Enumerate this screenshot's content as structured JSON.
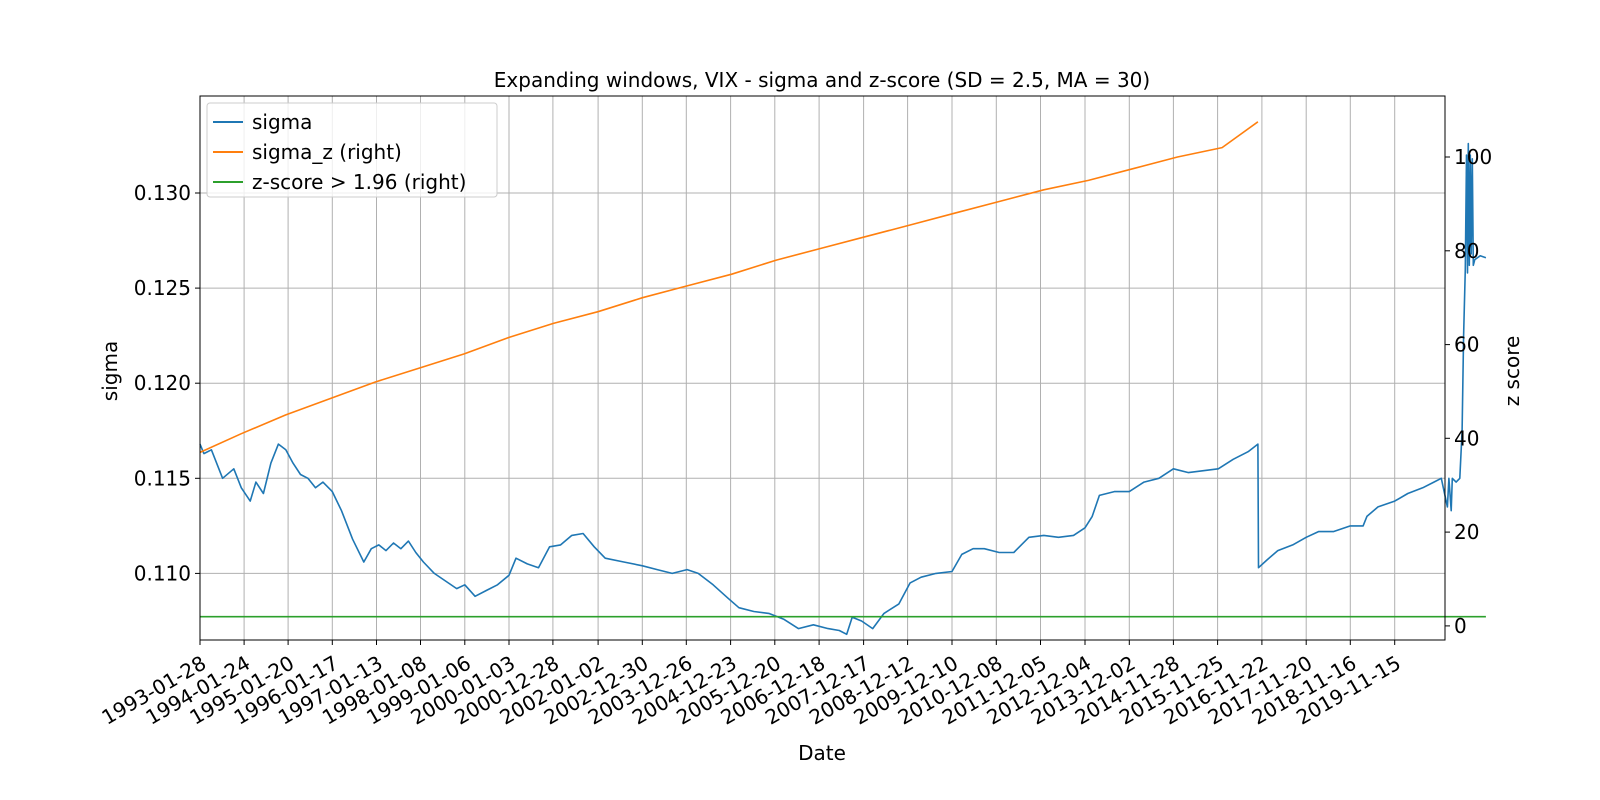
{
  "chart_data": {
    "type": "line",
    "title": "Expanding windows, VIX - sigma and z-score (SD = 2.5, MA = 30)",
    "xlabel": "Date",
    "ylabel": "sigma",
    "y2label": "z score",
    "xlim": [
      "1993-01-28",
      "2020-12-31"
    ],
    "ylim": [
      0.1065,
      0.1351
    ],
    "y2lim": [
      -3,
      113
    ],
    "yticks": [
      "0.110",
      "0.115",
      "0.120",
      "0.125",
      "0.130"
    ],
    "y2ticks": [
      "0",
      "20",
      "40",
      "60",
      "80",
      "100"
    ],
    "xticks": [
      "1993-01-28",
      "1994-01-24",
      "1995-01-20",
      "1996-01-17",
      "1997-01-13",
      "1998-01-08",
      "1999-01-06",
      "2000-01-03",
      "2000-12-28",
      "2002-01-02",
      "2002-12-30",
      "2003-12-26",
      "2004-12-23",
      "2005-12-20",
      "2006-12-18",
      "2007-12-17",
      "2008-12-12",
      "2009-12-10",
      "2010-12-08",
      "2011-12-05",
      "2012-12-04",
      "2013-12-02",
      "2014-11-28",
      "2015-11-25",
      "2016-11-22",
      "2017-11-20",
      "2018-11-16",
      "2019-11-15"
    ],
    "grid": true,
    "legend_position": "top-left",
    "colors": {
      "sigma": "#1f77b4",
      "sigma_z": "#ff7f0e",
      "zscore": "#2ca02c"
    },
    "series": [
      {
        "name": "sigma",
        "axis": "left",
        "points": [
          [
            "1993-01-28",
            0.1168
          ],
          [
            "1993-03-01",
            0.1163
          ],
          [
            "1993-05-01",
            0.1165
          ],
          [
            "1993-08-01",
            0.115
          ],
          [
            "1993-11-01",
            0.1155
          ],
          [
            "1994-01-01",
            0.1145
          ],
          [
            "1994-03-15",
            0.1138
          ],
          [
            "1994-05-01",
            0.1148
          ],
          [
            "1994-07-01",
            0.1142
          ],
          [
            "1994-09-01",
            0.1158
          ],
          [
            "1994-11-01",
            0.1168
          ],
          [
            "1995-01-01",
            0.1165
          ],
          [
            "1995-03-01",
            0.1158
          ],
          [
            "1995-05-01",
            0.1152
          ],
          [
            "1995-07-01",
            0.115
          ],
          [
            "1995-09-01",
            0.1145
          ],
          [
            "1995-11-01",
            0.1148
          ],
          [
            "1996-01-17",
            0.1143
          ],
          [
            "1996-04-01",
            0.1133
          ],
          [
            "1996-07-01",
            0.1118
          ],
          [
            "1996-10-01",
            0.1106
          ],
          [
            "1996-12-01",
            0.1113
          ],
          [
            "1997-02-01",
            0.1115
          ],
          [
            "1997-04-01",
            0.1112
          ],
          [
            "1997-06-01",
            0.1116
          ],
          [
            "1997-08-01",
            0.1113
          ],
          [
            "1997-10-01",
            0.1117
          ],
          [
            "1997-12-01",
            0.1111
          ],
          [
            "1998-02-01",
            0.1106
          ],
          [
            "1998-05-01",
            0.11
          ],
          [
            "1998-08-01",
            0.1096
          ],
          [
            "1998-11-01",
            0.1092
          ],
          [
            "1999-01-06",
            0.1094
          ],
          [
            "1999-04-01",
            0.1088
          ],
          [
            "1999-07-01",
            0.1091
          ],
          [
            "1999-10-01",
            0.1094
          ],
          [
            "2000-01-03",
            0.1099
          ],
          [
            "2000-03-01",
            0.1108
          ],
          [
            "2000-06-01",
            0.1105
          ],
          [
            "2000-09-01",
            0.1103
          ],
          [
            "2000-12-01",
            0.1114
          ],
          [
            "2001-03-01",
            0.1115
          ],
          [
            "2001-06-01",
            0.112
          ],
          [
            "2001-09-01",
            0.1121
          ],
          [
            "2001-12-01",
            0.1114
          ],
          [
            "2002-03-01",
            0.1108
          ],
          [
            "2002-08-01",
            0.1106
          ],
          [
            "2003-01-01",
            0.1104
          ],
          [
            "2003-05-01",
            0.1102
          ],
          [
            "2003-09-01",
            0.11
          ],
          [
            "2004-01-01",
            0.1102
          ],
          [
            "2004-04-01",
            0.11
          ],
          [
            "2004-08-01",
            0.1094
          ],
          [
            "2004-12-01",
            0.1087
          ],
          [
            "2005-03-01",
            0.1082
          ],
          [
            "2005-07-01",
            0.108
          ],
          [
            "2005-11-01",
            0.1079
          ],
          [
            "2006-03-01",
            0.1076
          ],
          [
            "2006-07-01",
            0.1071
          ],
          [
            "2006-11-01",
            0.1073
          ],
          [
            "2007-03-01",
            0.1071
          ],
          [
            "2007-06-01",
            0.107
          ],
          [
            "2007-08-01",
            0.1068
          ],
          [
            "2007-09-15",
            0.1077
          ],
          [
            "2007-12-01",
            0.1075
          ],
          [
            "2008-03-01",
            0.1071
          ],
          [
            "2008-06-01",
            0.1079
          ],
          [
            "2008-10-01",
            0.1084
          ],
          [
            "2009-01-01",
            0.1095
          ],
          [
            "2009-04-01",
            0.1098
          ],
          [
            "2009-08-01",
            0.11
          ],
          [
            "2009-12-10",
            0.1101
          ],
          [
            "2010-03-01",
            0.111
          ],
          [
            "2010-06-01",
            0.1113
          ],
          [
            "2010-09-01",
            0.1113
          ],
          [
            "2011-01-01",
            0.1111
          ],
          [
            "2011-05-01",
            0.1111
          ],
          [
            "2011-09-01",
            0.1119
          ],
          [
            "2012-01-01",
            0.112
          ],
          [
            "2012-05-01",
            0.1119
          ],
          [
            "2012-09-01",
            0.112
          ],
          [
            "2012-12-04",
            0.1124
          ],
          [
            "2013-02-01",
            0.113
          ],
          [
            "2013-04-01",
            0.1141
          ],
          [
            "2013-08-01",
            0.1143
          ],
          [
            "2013-12-02",
            0.1143
          ],
          [
            "2014-04-01",
            0.1148
          ],
          [
            "2014-08-01",
            0.115
          ],
          [
            "2014-11-28",
            0.1155
          ],
          [
            "2015-04-01",
            0.1153
          ],
          [
            "2015-08-01",
            0.1154
          ],
          [
            "2015-12-01",
            0.1155
          ],
          [
            "2016-04-01",
            0.116
          ],
          [
            "2016-08-01",
            0.1164
          ],
          [
            "2016-10-20",
            0.1168
          ],
          [
            "2016-10-25",
            0.1103
          ],
          [
            "2017-01-01",
            0.1107
          ],
          [
            "2017-04-01",
            0.1112
          ],
          [
            "2017-08-01",
            0.1115
          ],
          [
            "2017-11-20",
            0.1119
          ],
          [
            "2018-03-01",
            0.1122
          ],
          [
            "2018-07-01",
            0.1122
          ],
          [
            "2018-11-16",
            0.1125
          ],
          [
            "2019-03-01",
            0.1125
          ],
          [
            "2019-04-01",
            0.113
          ],
          [
            "2019-07-01",
            0.1135
          ],
          [
            "2019-11-15",
            0.1138
          ],
          [
            "2020-03-01",
            0.1142
          ],
          [
            "2020-07-01",
            0.1145
          ],
          [
            "2020-10-01",
            0.1148
          ],
          [
            "2020-12-01",
            0.115
          ],
          [
            "2021-01-20",
            0.1135
          ],
          [
            "2021-02-01",
            0.115
          ],
          [
            "2021-02-20",
            0.1133
          ],
          [
            "2021-03-01",
            0.115
          ],
          [
            "2021-04-01",
            0.1148
          ],
          [
            "2021-05-01",
            0.115
          ],
          [
            "2021-05-20",
            0.1175
          ],
          [
            "2021-06-01",
            0.1225
          ],
          [
            "2021-06-15",
            0.126
          ],
          [
            "2021-06-25",
            0.132
          ],
          [
            "2021-07-03",
            0.1258
          ],
          [
            "2021-07-10",
            0.1326
          ],
          [
            "2021-07-18",
            0.1262
          ],
          [
            "2021-07-26",
            0.132
          ],
          [
            "2021-08-03",
            0.1268
          ],
          [
            "2021-08-12",
            0.1318
          ],
          [
            "2021-08-20",
            0.1262
          ],
          [
            "2021-09-01",
            0.1265
          ],
          [
            "2021-10-15",
            0.1267
          ],
          [
            "2021-12-01",
            0.1266
          ]
        ]
      },
      {
        "name": "sigma_z (right)",
        "axis": "right",
        "points": [
          [
            "1993-01-28",
            37
          ],
          [
            "1994-01-01",
            41
          ],
          [
            "1995-01-01",
            45
          ],
          [
            "1996-01-01",
            48.5
          ],
          [
            "1997-01-01",
            52
          ],
          [
            "1998-01-01",
            55
          ],
          [
            "1999-01-01",
            58
          ],
          [
            "2000-01-01",
            61.5
          ],
          [
            "2001-01-01",
            64.5
          ],
          [
            "2002-01-01",
            67
          ],
          [
            "2003-01-01",
            70
          ],
          [
            "2004-01-01",
            72.5
          ],
          [
            "2005-01-01",
            75
          ],
          [
            "2006-01-01",
            78
          ],
          [
            "2007-01-01",
            80.5
          ],
          [
            "2008-01-01",
            83
          ],
          [
            "2009-01-01",
            85.5
          ],
          [
            "2010-01-01",
            88
          ],
          [
            "2011-01-01",
            90.5
          ],
          [
            "2012-01-01",
            93
          ],
          [
            "2013-01-01",
            95
          ],
          [
            "2014-01-01",
            97.5
          ],
          [
            "2015-01-01",
            100
          ],
          [
            "2016-01-01",
            102
          ],
          [
            "2016-10-20",
            107.5
          ]
        ]
      },
      {
        "name": "z-score > 1.96 (right)",
        "axis": "right",
        "points": [
          [
            "1993-01-28",
            1.96
          ],
          [
            "2021-12-01",
            1.96
          ]
        ]
      }
    ]
  }
}
